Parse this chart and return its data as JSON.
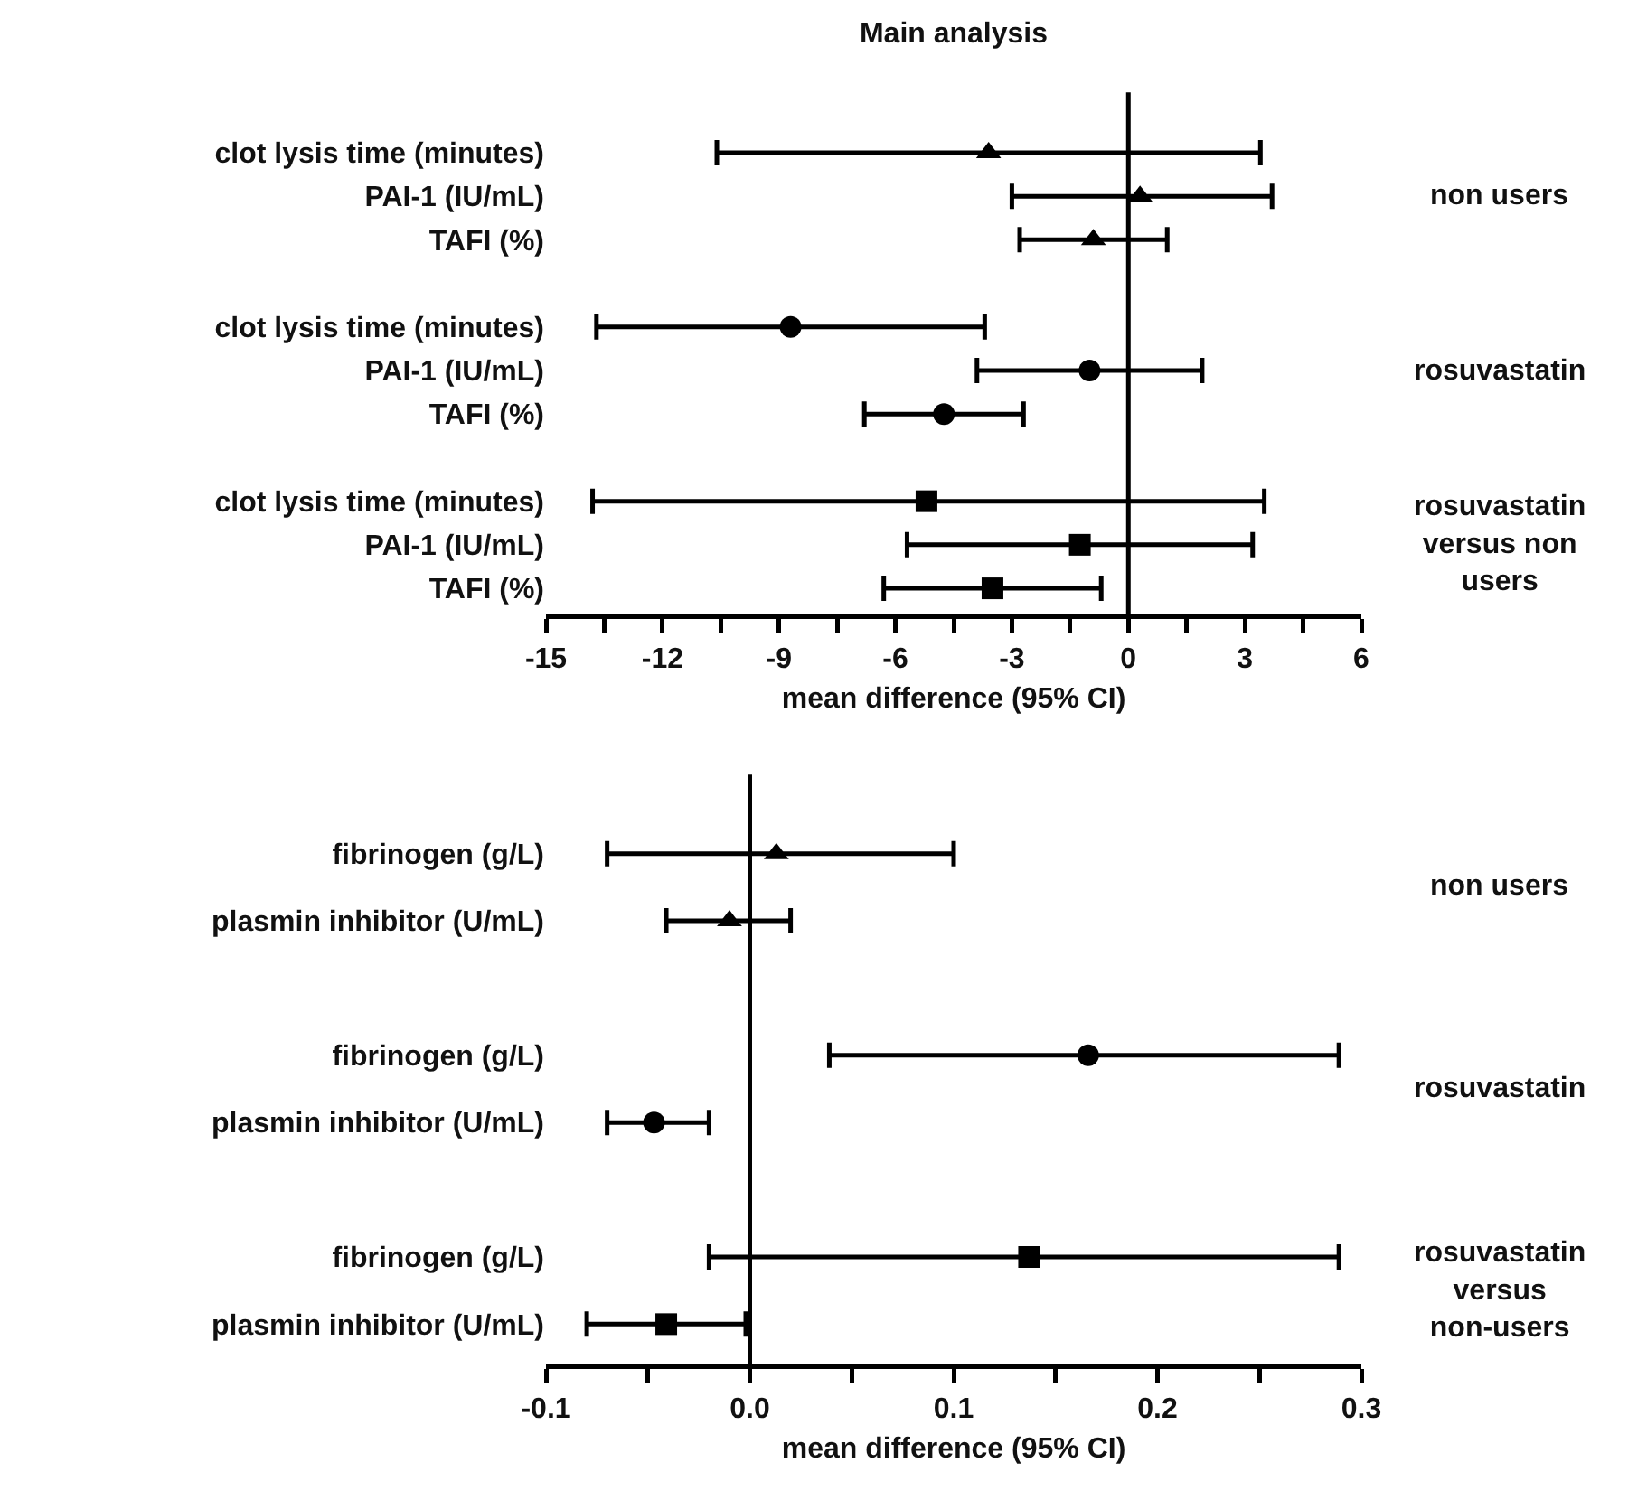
{
  "chart_data": [
    {
      "type": "scatter",
      "title": "Main analysis",
      "xlabel": "mean difference (95% CI)",
      "categories": [
        "clot lysis time (minutes)",
        "PAI-1 (IU/mL)",
        "TAFI (%)",
        "clot lysis time (minutes)",
        "PAI-1 (IU/mL)",
        "TAFI (%)",
        "clot lysis time (minutes)",
        "PAI-1 (IU/mL)",
        "TAFI (%)"
      ],
      "orientation": "horizontal",
      "series": [
        {
          "name": "non users",
          "color": "#000000",
          "marker": "triangle",
          "values": [
            -3.6,
            0.3,
            -0.9,
            null,
            null,
            null,
            null,
            null,
            null
          ],
          "errors": [
            [
              -10.6,
              3.4
            ],
            [
              -3.0,
              3.7
            ],
            [
              -2.8,
              1.0
            ],
            null,
            null,
            null,
            null,
            null,
            null
          ]
        },
        {
          "name": "rosuvastatin",
          "color": "#000000",
          "marker": "circle",
          "values": [
            null,
            null,
            null,
            -8.7,
            -1.0,
            -4.75,
            null,
            null,
            null
          ],
          "errors": [
            null,
            null,
            null,
            [
              -13.7,
              -3.7
            ],
            [
              -3.9,
              1.9
            ],
            [
              -6.8,
              -2.7
            ],
            null,
            null,
            null
          ]
        },
        {
          "name": "rosuvastatin versus non users",
          "color": "#000000",
          "marker": "square",
          "values": [
            null,
            null,
            null,
            null,
            null,
            null,
            -5.2,
            -1.25,
            -3.5
          ],
          "errors": [
            null,
            null,
            null,
            null,
            null,
            null,
            [
              -13.8,
              3.5
            ],
            [
              -5.7,
              3.2
            ],
            [
              -6.3,
              -0.7
            ]
          ]
        }
      ],
      "xlim": [
        -15,
        6
      ],
      "xticks": [
        -15,
        {
          "value": -13.5,
          "label": null
        },
        -12,
        {
          "value": -10.5,
          "label": null
        },
        -9,
        {
          "value": -7.5,
          "label": null
        },
        -6,
        {
          "value": -4.5,
          "label": null
        },
        -3,
        {
          "value": -1.5,
          "label": null
        },
        0,
        {
          "value": 1.5,
          "label": null
        },
        3,
        {
          "value": 4.5,
          "label": null
        },
        6
      ],
      "ref_lines": [
        {
          "axis": "x",
          "value": 0
        }
      ],
      "grid": false,
      "legend": false
    },
    {
      "type": "scatter",
      "xlabel": "mean difference (95% CI)",
      "categories": [
        "fibrinogen (g/L)",
        "plasmin inhibitor (U/mL)",
        "fibrinogen (g/L)",
        "plasmin inhibitor (U/mL)",
        "fibrinogen (g/L)",
        "plasmin inhibitor (U/mL)"
      ],
      "orientation": "horizontal",
      "series": [
        {
          "name": "non users",
          "color": "#000000",
          "marker": "triangle",
          "values": [
            0.013,
            -0.01,
            null,
            null,
            null,
            null
          ],
          "errors": [
            [
              -0.07,
              0.1
            ],
            [
              -0.041,
              0.02
            ],
            null,
            null,
            null,
            null
          ]
        },
        {
          "name": "rosuvastatin",
          "color": "#000000",
          "marker": "circle",
          "values": [
            null,
            null,
            0.166,
            -0.047,
            null,
            null
          ],
          "errors": [
            null,
            null,
            [
              0.039,
              0.289
            ],
            [
              -0.07,
              -0.02
            ],
            null,
            null
          ]
        },
        {
          "name": "rosuvastatin versus non-users",
          "color": "#000000",
          "marker": "square",
          "values": [
            null,
            null,
            null,
            null,
            0.137,
            -0.041
          ],
          "errors": [
            null,
            null,
            null,
            null,
            [
              -0.02,
              0.289
            ],
            [
              -0.08,
              -0.002
            ]
          ]
        }
      ],
      "xlim": [
        -0.1,
        0.3
      ],
      "xticks": [
        -0.1,
        {
          "value": -0.05,
          "label": null
        },
        {
          "value": 0,
          "label": "0.0"
        },
        {
          "value": 0.05,
          "label": null
        },
        0.1,
        {
          "value": 0.15,
          "label": null
        },
        0.2,
        {
          "value": 0.25,
          "label": null
        },
        0.3
      ],
      "ref_lines": [
        {
          "axis": "x",
          "value": 0
        }
      ],
      "grid": false,
      "legend": false
    }
  ]
}
